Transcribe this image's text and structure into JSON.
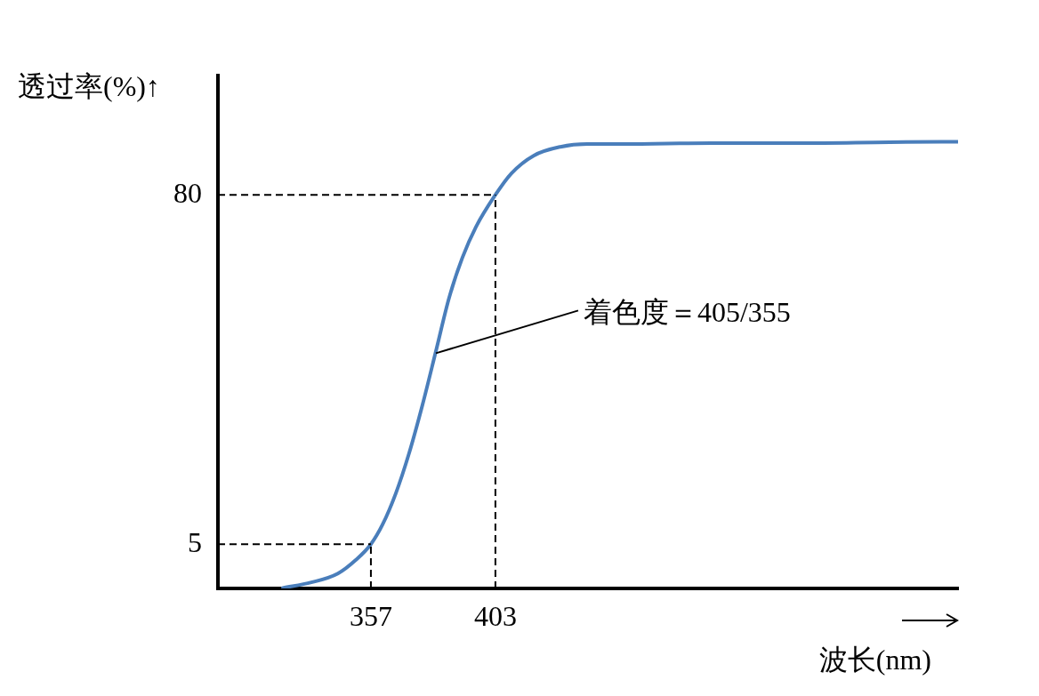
{
  "chart_data": {
    "type": "line",
    "xlabel": "波长(nm)",
    "ylabel": "透过率(%)↑",
    "xlim": [
      300.5,
      573.9
    ],
    "ylim": [
      -4.5,
      105.6
    ],
    "xticks": [
      357,
      403
    ],
    "yticks": [
      5,
      80
    ],
    "grid": false,
    "legend": false,
    "marker": "none",
    "line_style": "solid",
    "series": [
      {
        "color": "#4a7ebb",
        "x": [
          324.5,
          335,
          344.8,
          351.4,
          357,
          361.3,
          366.2,
          371.1,
          376.1,
          381,
          385.9,
          390.8,
          395.8,
          403,
          408.9,
          417.1,
          427,
          436.9,
          450,
          482.9,
          515.7,
          548.6,
          573.9
        ],
        "values": [
          -4.4,
          -3.2,
          -1.3,
          1.6,
          5,
          9.2,
          15.9,
          24.5,
          35,
          46.4,
          57.9,
          66.5,
          73.1,
          80,
          84.6,
          88.4,
          90.3,
          90.9,
          90.9,
          91.1,
          91.1,
          91.3,
          91.4
        ]
      }
    ],
    "ref_lines": [
      {
        "axis": "x",
        "value": 357,
        "line_style": "dashed"
      },
      {
        "axis": "x",
        "value": 403,
        "line_style": "dashed"
      },
      {
        "axis": "y",
        "value": 5,
        "line_style": "dashed"
      },
      {
        "axis": "y",
        "value": 80,
        "line_style": "dashed"
      }
    ],
    "annotations": [
      {
        "text": "着色度＝405/355",
        "x": 381,
        "y": 46
      }
    ]
  }
}
